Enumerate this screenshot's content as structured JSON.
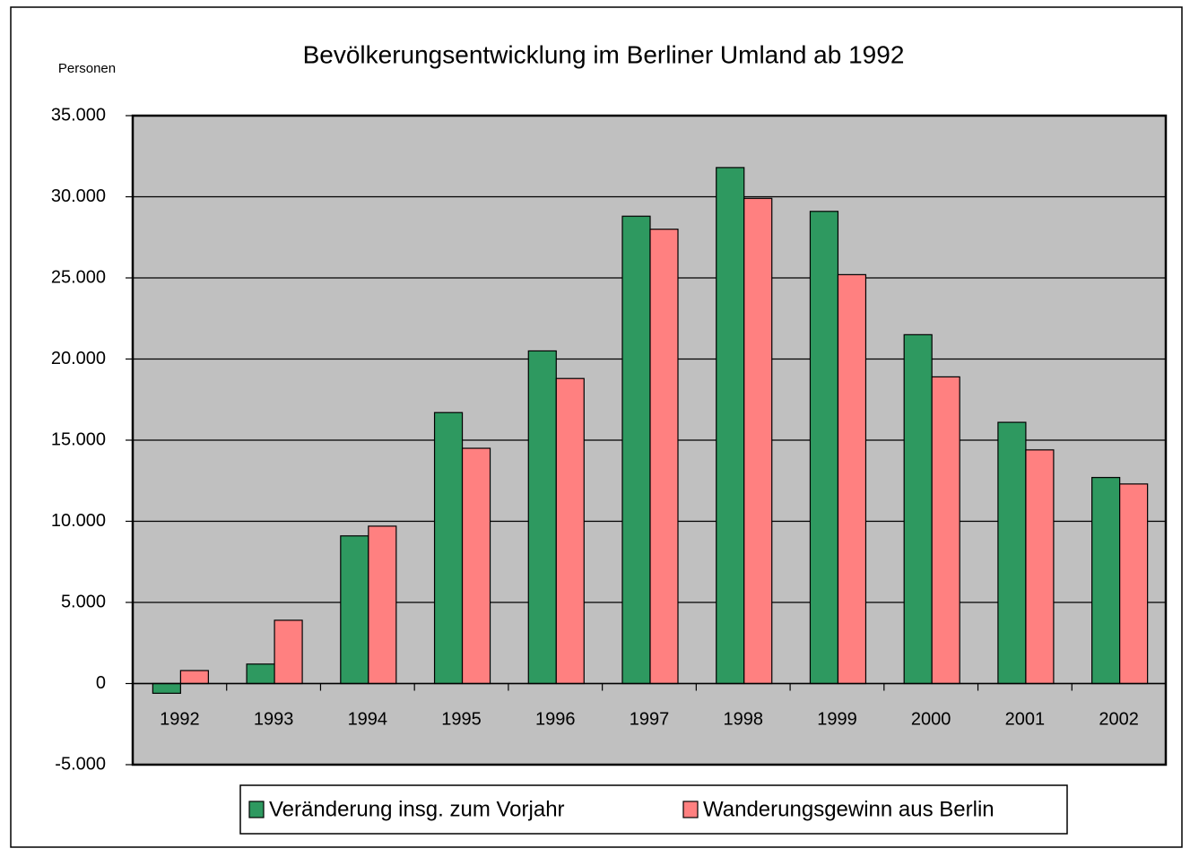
{
  "chart_data": {
    "type": "bar",
    "title": "Bevölkerungsentwicklung im Berliner Umland ab 1992",
    "y_label": "Personen",
    "categories": [
      "1992",
      "1993",
      "1994",
      "1995",
      "1996",
      "1997",
      "1998",
      "1999",
      "2000",
      "2001",
      "2002"
    ],
    "series": [
      {
        "name": "Veränderung insg. zum Vorjahr",
        "color": "#2e9960",
        "values": [
          -600,
          1200,
          9100,
          16700,
          20500,
          28800,
          31800,
          29100,
          21500,
          16100,
          12700
        ]
      },
      {
        "name": "Wanderungsgewinn aus Berlin",
        "color": "#ff8080",
        "values": [
          800,
          3900,
          9700,
          14500,
          18800,
          28000,
          29900,
          25200,
          18900,
          14400,
          12300
        ]
      }
    ],
    "ylim": [
      -5000,
      35000
    ],
    "yticks": [
      {
        "value": -5000,
        "label": "-5.000"
      },
      0,
      {
        "value": 5000,
        "label": "5.000"
      },
      {
        "value": 10000,
        "label": "10.000"
      },
      {
        "value": 15000,
        "label": "15.000"
      },
      {
        "value": 20000,
        "label": "20.000"
      },
      {
        "value": 25000,
        "label": "25.000"
      },
      {
        "value": 30000,
        "label": "30.000"
      },
      {
        "value": 35000,
        "label": "35.000"
      }
    ],
    "grid": true,
    "legend": "bottom",
    "plot_background": "#c0c0c0"
  }
}
